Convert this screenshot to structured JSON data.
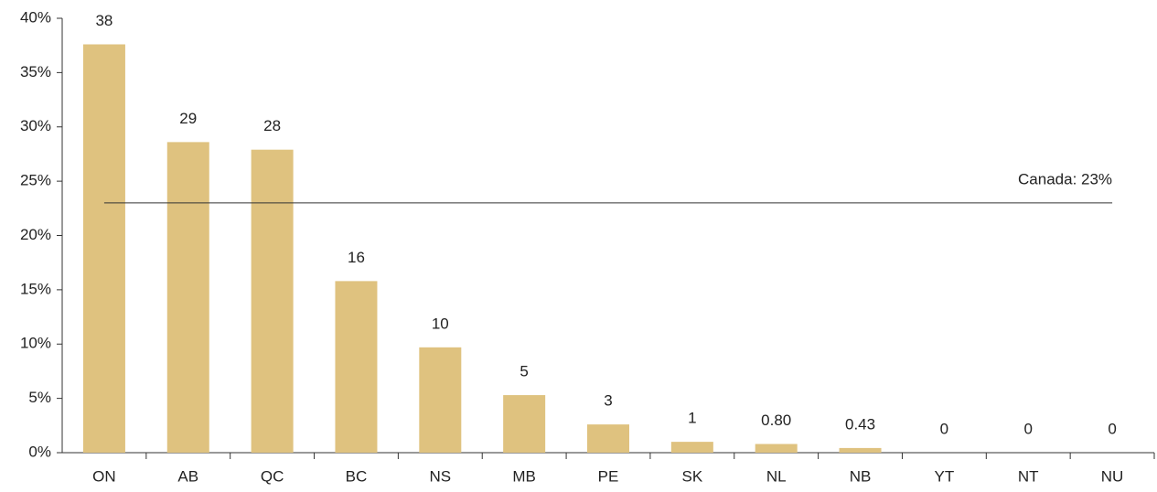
{
  "chart_data": {
    "type": "bar",
    "categories": [
      "ON",
      "AB",
      "QC",
      "BC",
      "NS",
      "MB",
      "PE",
      "SK",
      "NL",
      "NB",
      "YT",
      "NT",
      "NU"
    ],
    "values": [
      37.6,
      28.6,
      27.9,
      15.8,
      9.7,
      5.3,
      2.6,
      1.0,
      0.8,
      0.43,
      0,
      0,
      0
    ],
    "value_labels": [
      "38",
      "29",
      "28",
      "16",
      "10",
      "5",
      "3",
      "1",
      "0.80",
      "0.43",
      "0",
      "0",
      "0"
    ],
    "color": "#dfc27f",
    "ylim": [
      0,
      40
    ],
    "yticks": [
      {
        "value": 0,
        "label": "0%"
      },
      {
        "value": 5,
        "label": "5%"
      },
      {
        "value": 10,
        "label": "10%"
      },
      {
        "value": 15,
        "label": "15%"
      },
      {
        "value": 20,
        "label": "20%"
      },
      {
        "value": 25,
        "label": "25%"
      },
      {
        "value": 30,
        "label": "30%"
      },
      {
        "value": 35,
        "label": "35%"
      },
      {
        "value": 40,
        "label": "40%"
      }
    ],
    "reference_line": {
      "value": 23,
      "label": "Canada: 23%"
    },
    "grid": false
  }
}
